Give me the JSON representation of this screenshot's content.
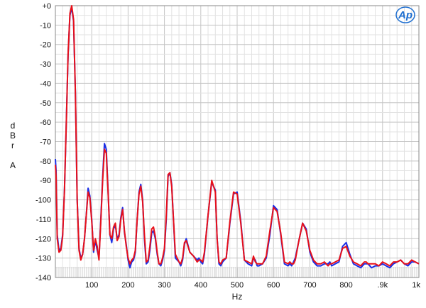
{
  "chart_data": {
    "type": "line",
    "title": "",
    "xlabel": "Hz",
    "ylabel": [
      "d",
      "B",
      "r",
      "",
      "A"
    ],
    "xlim": [
      0,
      1000
    ],
    "ylim": [
      -140,
      0
    ],
    "x_ticks": [
      {
        "v": 100,
        "label": "100"
      },
      {
        "v": 200,
        "label": "200"
      },
      {
        "v": 300,
        "label": "300"
      },
      {
        "v": 400,
        "label": "400"
      },
      {
        "v": 500,
        "label": "500"
      },
      {
        "v": 600,
        "label": "600"
      },
      {
        "v": 700,
        "label": "700"
      },
      {
        "v": 800,
        "label": "800"
      },
      {
        "v": 900,
        "label": ".9k"
      },
      {
        "v": 1000,
        "label": "1k"
      }
    ],
    "y_ticks": [
      {
        "v": 0,
        "label": "+0"
      },
      {
        "v": -10,
        "label": "-10"
      },
      {
        "v": -20,
        "label": "-20"
      },
      {
        "v": -30,
        "label": "-30"
      },
      {
        "v": -40,
        "label": "-40"
      },
      {
        "v": -50,
        "label": "-50"
      },
      {
        "v": -60,
        "label": "-60"
      },
      {
        "v": -70,
        "label": "-70"
      },
      {
        "v": -80,
        "label": "-80"
      },
      {
        "v": -90,
        "label": "-90"
      },
      {
        "v": -100,
        "label": "-100"
      },
      {
        "v": -110,
        "label": "-110"
      },
      {
        "v": -120,
        "label": "-120"
      },
      {
        "v": -130,
        "label": "-130"
      },
      {
        "v": -140,
        "label": "-140"
      }
    ],
    "grid": true,
    "logo": {
      "text": "Ap",
      "color": "#1f6fd0"
    },
    "series": [
      {
        "color": "#1a2ee6",
        "x": [
          0,
          2,
          5,
          10,
          15,
          20,
          25,
          30,
          35,
          40,
          45,
          50,
          55,
          60,
          65,
          70,
          75,
          80,
          85,
          90,
          95,
          100,
          105,
          110,
          115,
          120,
          125,
          130,
          135,
          140,
          145,
          150,
          155,
          160,
          165,
          170,
          175,
          180,
          185,
          190,
          195,
          200,
          205,
          210,
          215,
          220,
          225,
          230,
          235,
          240,
          245,
          250,
          255,
          260,
          265,
          270,
          275,
          280,
          285,
          290,
          295,
          300,
          305,
          310,
          315,
          320,
          330,
          340,
          345,
          350,
          355,
          360,
          370,
          380,
          390,
          395,
          400,
          405,
          410,
          420,
          430,
          440,
          445,
          450,
          455,
          460,
          470,
          480,
          490,
          500,
          510,
          520,
          530,
          540,
          545,
          550,
          555,
          560,
          570,
          580,
          590,
          600,
          610,
          620,
          630,
          640,
          645,
          650,
          655,
          660,
          670,
          680,
          690,
          700,
          710,
          720,
          730,
          740,
          745,
          750,
          755,
          760,
          770,
          780,
          790,
          800,
          810,
          820,
          830,
          840,
          845,
          850,
          855,
          860,
          870,
          880,
          890,
          900,
          910,
          920,
          930,
          940,
          950,
          960,
          970,
          980,
          990,
          1000
        ],
        "y": [
          -79,
          -85,
          -118,
          -126,
          -125,
          -118,
          -95,
          -60,
          -25,
          -5,
          -1,
          -8,
          -45,
          -100,
          -125,
          -130,
          -128,
          -120,
          -108,
          -94,
          -98,
          -110,
          -127,
          -121,
          -126,
          -130,
          -110,
          -88,
          -71,
          -74,
          -95,
          -118,
          -122,
          -115,
          -113,
          -120,
          -118,
          -109,
          -104,
          -117,
          -123,
          -131,
          -135,
          -132,
          -131,
          -127,
          -110,
          -96,
          -92,
          -100,
          -120,
          -133,
          -132,
          -126,
          -117,
          -116,
          -120,
          -128,
          -133,
          -134,
          -131,
          -126,
          -110,
          -88,
          -86,
          -92,
          -130,
          -132,
          -134,
          -131,
          -123,
          -120,
          -127,
          -129,
          -131,
          -130,
          -132,
          -133,
          -128,
          -108,
          -91,
          -95,
          -120,
          -133,
          -134,
          -132,
          -130,
          -112,
          -97,
          -96,
          -111,
          -131,
          -133,
          -134,
          -130,
          -131,
          -134,
          -134,
          -133,
          -130,
          -118,
          -103,
          -105,
          -118,
          -133,
          -134,
          -133,
          -134,
          -132,
          -130,
          -121,
          -112,
          -115,
          -127,
          -132,
          -134,
          -134,
          -133,
          -133,
          -133,
          -132,
          -134,
          -133,
          -132,
          -124,
          -122,
          -128,
          -133,
          -134,
          -135,
          -134,
          -133,
          -133,
          -133,
          -135,
          -134,
          -134,
          -133,
          -134,
          -135,
          -133,
          -132,
          -131,
          -133,
          -134,
          -132,
          -132,
          -133
        ]
      },
      {
        "color": "#e8101a",
        "x": [
          0,
          2,
          5,
          10,
          15,
          20,
          25,
          30,
          35,
          40,
          45,
          50,
          55,
          60,
          65,
          70,
          75,
          80,
          85,
          90,
          95,
          100,
          105,
          110,
          115,
          120,
          125,
          130,
          135,
          140,
          145,
          150,
          155,
          160,
          165,
          170,
          175,
          180,
          185,
          190,
          195,
          200,
          205,
          210,
          215,
          220,
          225,
          230,
          235,
          240,
          245,
          250,
          255,
          260,
          265,
          270,
          275,
          280,
          285,
          290,
          295,
          300,
          305,
          310,
          315,
          320,
          330,
          340,
          345,
          350,
          355,
          360,
          370,
          380,
          390,
          395,
          400,
          405,
          410,
          420,
          430,
          440,
          445,
          450,
          455,
          460,
          470,
          480,
          490,
          500,
          510,
          520,
          530,
          540,
          545,
          550,
          555,
          560,
          570,
          580,
          590,
          600,
          610,
          620,
          630,
          640,
          645,
          650,
          655,
          660,
          670,
          680,
          690,
          700,
          710,
          720,
          730,
          740,
          745,
          750,
          755,
          760,
          770,
          780,
          790,
          800,
          810,
          820,
          830,
          840,
          845,
          850,
          855,
          860,
          870,
          880,
          890,
          900,
          910,
          920,
          930,
          940,
          950,
          960,
          970,
          980,
          990,
          1000
        ],
        "y": [
          -82,
          -88,
          -120,
          -127,
          -126,
          -119,
          -95,
          -60,
          -25,
          -4,
          0,
          -7,
          -45,
          -100,
          -126,
          -131,
          -128,
          -120,
          -108,
          -96,
          -99,
          -111,
          -126,
          -120,
          -124,
          -131,
          -111,
          -90,
          -74,
          -76,
          -96,
          -118,
          -120,
          -114,
          -112,
          -121,
          -119,
          -110,
          -105,
          -116,
          -124,
          -130,
          -133,
          -131,
          -130,
          -126,
          -110,
          -97,
          -93,
          -101,
          -118,
          -132,
          -131,
          -124,
          -115,
          -114,
          -119,
          -127,
          -133,
          -133,
          -130,
          -125,
          -108,
          -87,
          -86,
          -93,
          -128,
          -132,
          -133,
          -130,
          -122,
          -121,
          -127,
          -129,
          -132,
          -131,
          -131,
          -132,
          -127,
          -108,
          -90,
          -96,
          -120,
          -132,
          -133,
          -131,
          -130,
          -111,
          -96,
          -97,
          -112,
          -131,
          -132,
          -133,
          -129,
          -132,
          -133,
          -133,
          -133,
          -129,
          -116,
          -104,
          -106,
          -117,
          -132,
          -133,
          -132,
          -133,
          -133,
          -131,
          -121,
          -112,
          -116,
          -126,
          -131,
          -133,
          -133,
          -132,
          -133,
          -134,
          -133,
          -133,
          -132,
          -131,
          -125,
          -124,
          -129,
          -132,
          -133,
          -134,
          -133,
          -132,
          -132,
          -133,
          -133,
          -133,
          -134,
          -132,
          -133,
          -134,
          -132,
          -132,
          -131,
          -133,
          -133,
          -131,
          -132,
          -133
        ]
      }
    ]
  }
}
